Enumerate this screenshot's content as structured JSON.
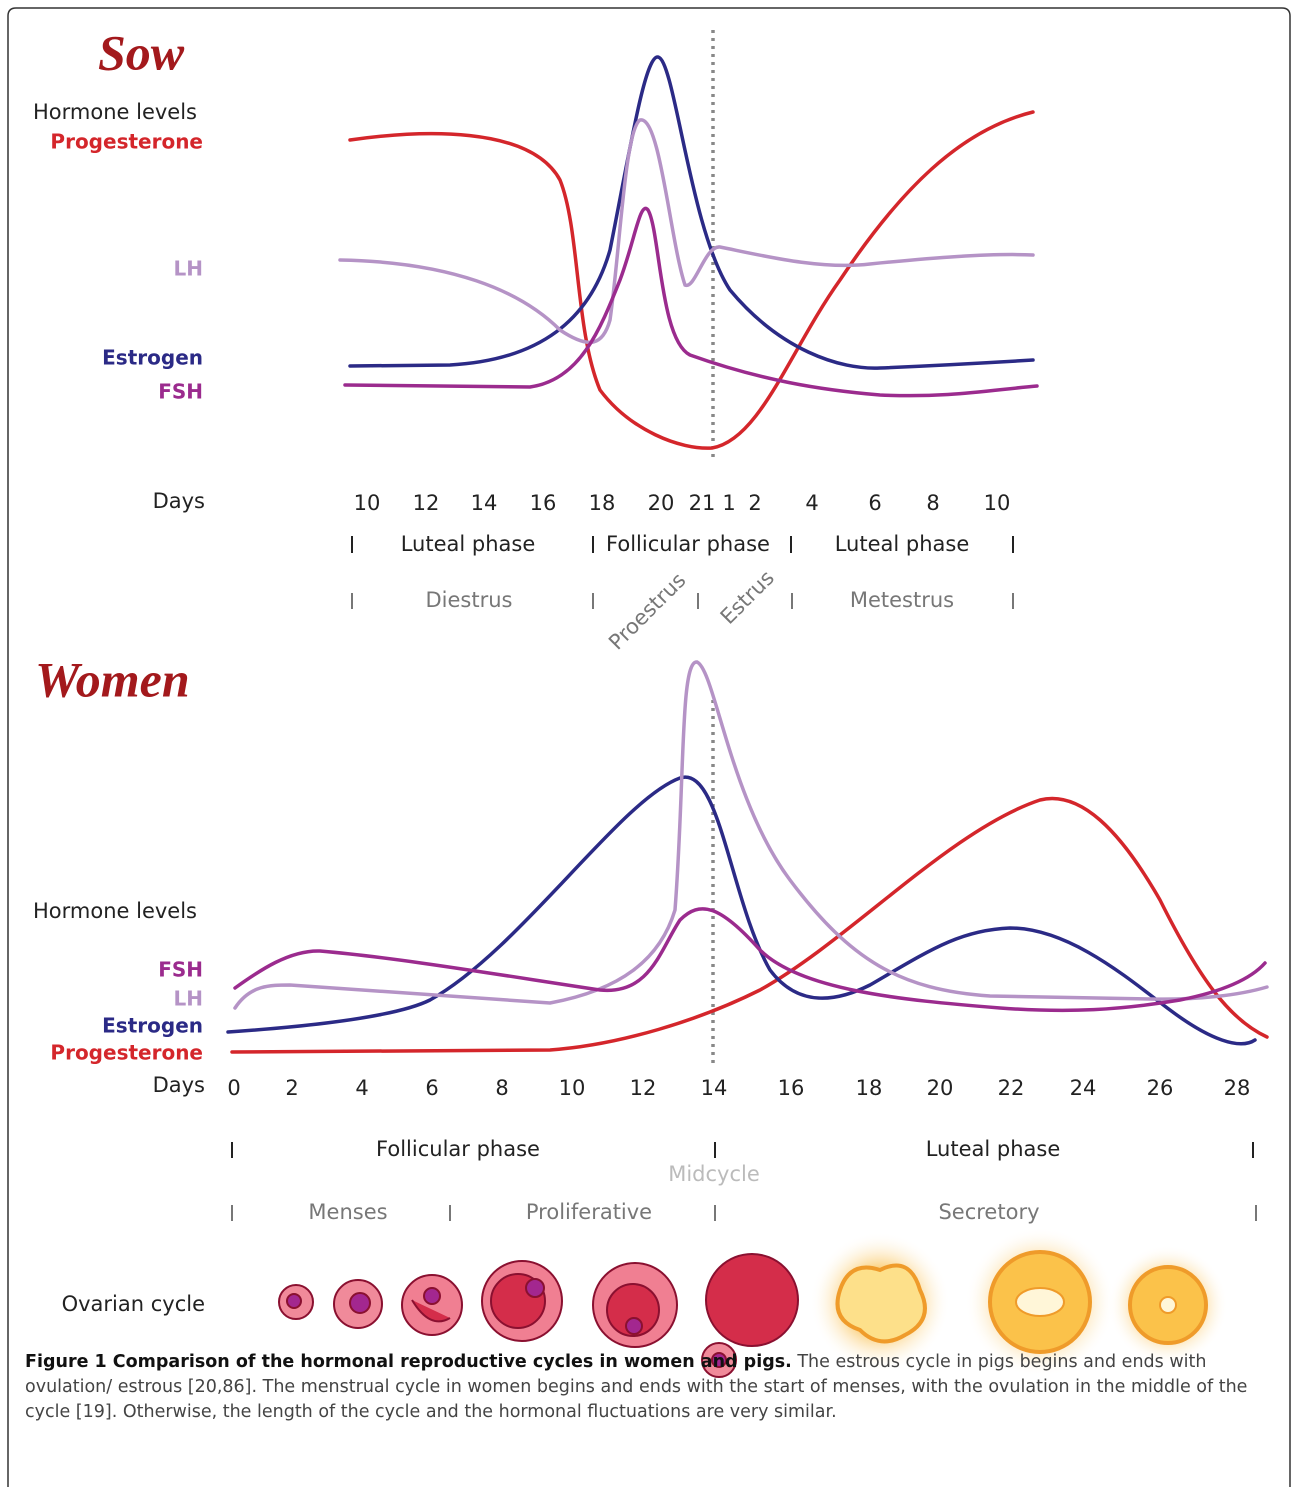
{
  "sow": {
    "title": "Sow",
    "y_label": "Hormone levels",
    "legend": [
      "Progesterone",
      "LH",
      "Estrogen",
      "FSH"
    ],
    "days_label": "Days",
    "days": [
      10,
      12,
      14,
      16,
      18,
      20,
      21,
      1,
      2,
      4,
      6,
      8,
      10
    ],
    "phases": [
      "Luteal phase",
      "Follicular phase",
      "Luteal phase"
    ],
    "stages": [
      "Diestrus",
      "Proestrus",
      "Estrus",
      "Metestrus"
    ]
  },
  "women": {
    "title": "Women",
    "y_label": "Hormone levels",
    "legend": [
      "FSH",
      "LH",
      "Estrogen",
      "Progesterone"
    ],
    "days_label": "Days",
    "days": [
      0,
      2,
      4,
      6,
      8,
      10,
      12,
      14,
      16,
      18,
      20,
      22,
      24,
      26,
      28
    ],
    "phases": [
      "Follicular phase",
      "Luteal phase"
    ],
    "midcycle": "Midcycle",
    "stages": [
      "Menses",
      "Proliferative",
      "Secretory"
    ],
    "ovarian_label": "Ovarian cycle"
  },
  "caption": {
    "bold": "Figure 1 Comparison of the hormonal reproductive cycles in women and pigs.",
    "text": " The estrous cycle in pigs begins and ends with ovulation/ estrous [20,86]. The menstrual cycle in women begins and ends with the start of menses, with the ovulation in the middle of the cycle [19]. Otherwise, the length of the cycle and the hormonal fluctuations are very similar."
  }
}
